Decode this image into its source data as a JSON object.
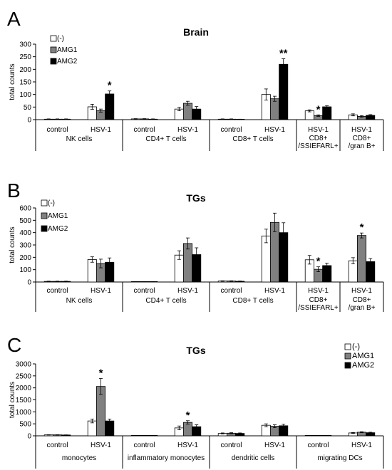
{
  "chart_data": [
    {
      "type": "bar",
      "panel_label": "A",
      "title": "Brain",
      "ylabel": "total counts",
      "ylim": [
        0,
        300
      ],
      "yticks": [
        0,
        50,
        100,
        150,
        200,
        250,
        300
      ],
      "series": [
        {
          "name": "(-)",
          "color": "#ffffff",
          "values": [
            2,
            51,
            3,
            42,
            2,
            100,
            35,
            19
          ],
          "errors": [
            1,
            10,
            1,
            7,
            1,
            22,
            4,
            4
          ]
        },
        {
          "name": "AMG1",
          "color": "#808080",
          "values": [
            2,
            36,
            3,
            65,
            2,
            83,
            16,
            13
          ],
          "errors": [
            1,
            6,
            1,
            8,
            1,
            10,
            3,
            3
          ]
        },
        {
          "name": "AMG2",
          "color": "#000000",
          "values": [
            2,
            102,
            2,
            42,
            1,
            220,
            51,
            17
          ],
          "errors": [
            1,
            12,
            1,
            10,
            1,
            22,
            4,
            3
          ]
        }
      ],
      "categories": [
        "control",
        "HSV-1",
        "control",
        "HSV-1",
        "control",
        "HSV-1",
        "HSV-1",
        "HSV-1"
      ],
      "groups": [
        {
          "label": "NK cells",
          "size": 2
        },
        {
          "label": "CD4+ T cells",
          "size": 2
        },
        {
          "label": "CD8+ T cells",
          "size": 2
        },
        {
          "label": "CD8+\n/SSIEFARL+",
          "size": 1
        },
        {
          "label": "CD8+\n/gran B+",
          "size": 1
        }
      ],
      "annotations": [
        {
          "text": "*",
          "category_index": 1,
          "series_index": 2
        },
        {
          "text": "**",
          "category_index": 5,
          "series_index": 2
        },
        {
          "text": "*",
          "category_index": 6,
          "series_index": 1
        }
      ],
      "legend": "top-left"
    },
    {
      "type": "bar",
      "panel_label": "B",
      "title": "TGs",
      "ylabel": "total counts",
      "ylim": [
        0,
        600
      ],
      "yticks": [
        0,
        100,
        200,
        300,
        400,
        500,
        600
      ],
      "series": [
        {
          "name": "(-)",
          "color": "#ffffff",
          "values": [
            5,
            182,
            3,
            218,
            8,
            373,
            180,
            172
          ],
          "errors": [
            2,
            22,
            1,
            35,
            2,
            55,
            35,
            25
          ]
        },
        {
          "name": "AMG1",
          "color": "#808080",
          "values": [
            5,
            150,
            3,
            312,
            8,
            483,
            103,
            377
          ],
          "errors": [
            2,
            35,
            1,
            45,
            2,
            75,
            20,
            20
          ]
        },
        {
          "name": "AMG2",
          "color": "#000000",
          "values": [
            5,
            160,
            3,
            222,
            6,
            400,
            133,
            165
          ],
          "errors": [
            2,
            35,
            1,
            55,
            2,
            80,
            20,
            25
          ]
        }
      ],
      "categories": [
        "control",
        "HSV-1",
        "control",
        "HSV-1",
        "control",
        "HSV-1",
        "HSV-1",
        "HSV-1"
      ],
      "groups": [
        {
          "label": "NK cells",
          "size": 2
        },
        {
          "label": "CD4+ T cells",
          "size": 2
        },
        {
          "label": "CD8+ T cells",
          "size": 2
        },
        {
          "label": "CD8+\n/SSIEFARL+",
          "size": 1
        },
        {
          "label": "CD8+\n/gran B+",
          "size": 1
        }
      ],
      "annotations": [
        {
          "text": "*",
          "category_index": 6,
          "series_index": 1
        },
        {
          "text": "*",
          "category_index": 7,
          "series_index": 1
        }
      ],
      "legend": "top-left"
    },
    {
      "type": "bar",
      "panel_label": "C",
      "title": "TGs",
      "ylabel": "total counts",
      "ylim": [
        0,
        3000
      ],
      "yticks": [
        0,
        500,
        1000,
        1500,
        2000,
        2500,
        3000
      ],
      "series": [
        {
          "name": "(-)",
          "color": "#ffffff",
          "values": [
            40,
            620,
            10,
            330,
            100,
            440,
            5,
            120
          ],
          "errors": [
            5,
            80,
            3,
            80,
            20,
            60,
            2,
            20
          ]
        },
        {
          "name": "AMG1",
          "color": "#808080",
          "values": [
            40,
            2060,
            10,
            560,
            110,
            400,
            5,
            150
          ],
          "errors": [
            5,
            330,
            3,
            70,
            20,
            60,
            2,
            20
          ]
        },
        {
          "name": "AMG2",
          "color": "#000000",
          "values": [
            35,
            620,
            10,
            380,
            100,
            420,
            5,
            130
          ],
          "errors": [
            5,
            80,
            3,
            80,
            20,
            60,
            2,
            20
          ]
        }
      ],
      "categories": [
        "control",
        "HSV-1",
        "control",
        "HSV-1",
        "control",
        "HSV-1",
        "control",
        "HSV-1"
      ],
      "groups": [
        {
          "label": "monocytes",
          "size": 2
        },
        {
          "label": "inflammatory monocytes",
          "size": 2
        },
        {
          "label": "dendritic cells",
          "size": 2
        },
        {
          "label": "migrating DCs",
          "size": 2
        }
      ],
      "annotations": [
        {
          "text": "*",
          "category_index": 1,
          "series_index": 1
        },
        {
          "text": "*",
          "category_index": 3,
          "series_index": 1
        }
      ],
      "legend": "top-right"
    }
  ]
}
